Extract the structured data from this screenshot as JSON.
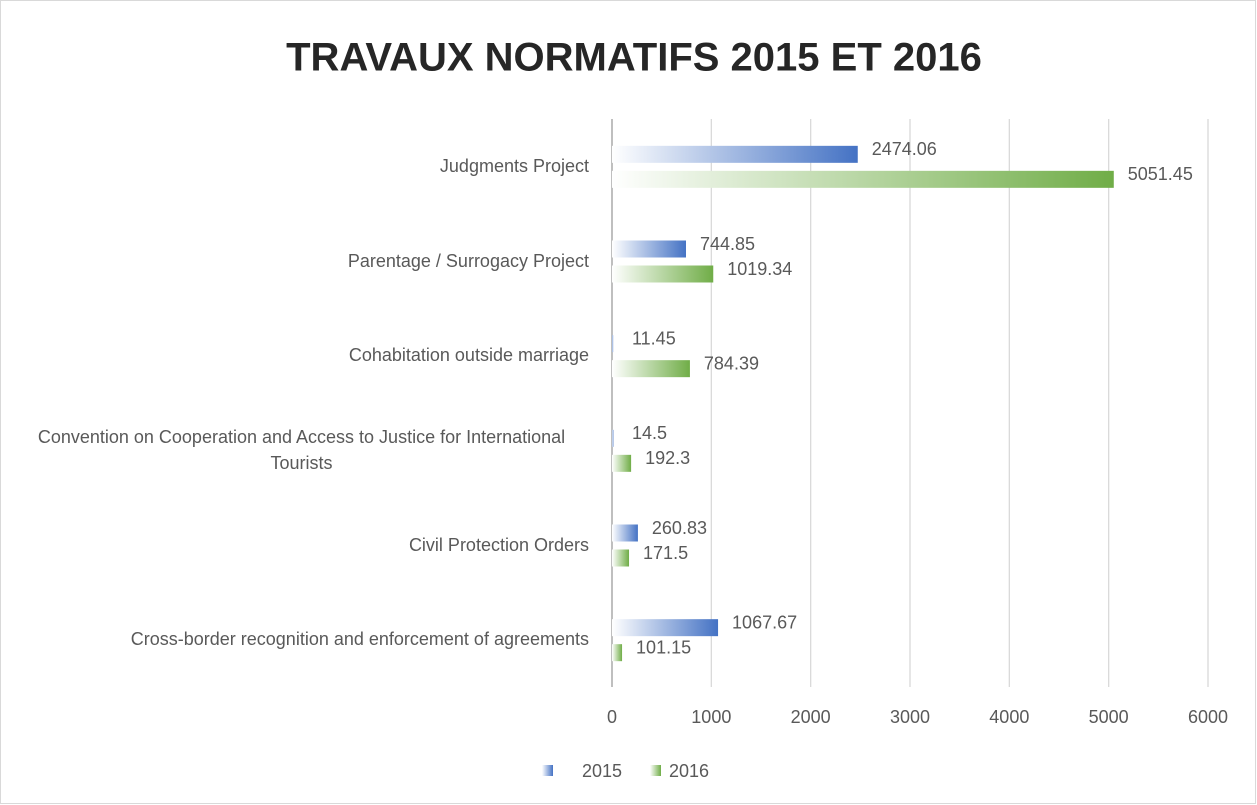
{
  "chart_data": {
    "type": "hbar",
    "title": "TRAVAUX NORMATIFS 2015 ET 2016",
    "categories": [
      "Judgments Project",
      "Parentage / Surrogacy Project",
      "Cohabitation outside marriage",
      "Convention on Cooperation and Access to Justice for International Tourists",
      "Civil Protection Orders",
      "Cross-border recognition and enforcement of agreements"
    ],
    "series": [
      {
        "name": "2015",
        "color": "#4472c4",
        "values": [
          2474.06,
          744.85,
          11.45,
          14.5,
          260.83,
          1067.67
        ]
      },
      {
        "name": "2016",
        "color": "#70ad47",
        "values": [
          5051.45,
          1019.34,
          784.39,
          192.3,
          171.5,
          101.15
        ]
      }
    ],
    "xlim": [
      0,
      6000
    ],
    "xticks": [
      0,
      1000,
      2000,
      3000,
      4000,
      5000,
      6000
    ],
    "grid": true,
    "legend": "bottom"
  }
}
